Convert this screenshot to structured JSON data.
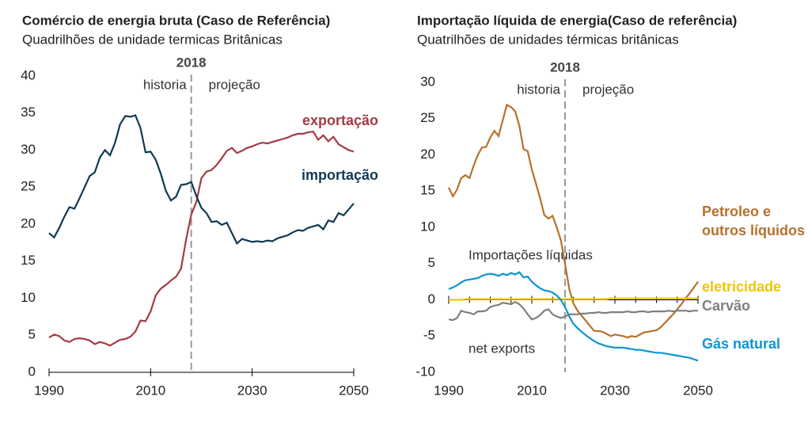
{
  "chart_data": [
    {
      "type": "line",
      "title": "Comércio de energia bruta (Caso de Referência)",
      "subtitle": "Quadrilhões de unidade termicas Britânicas",
      "divider_year": 2018,
      "annotations": [
        "historia",
        "projeção"
      ],
      "x": [
        1990,
        1991,
        1992,
        1993,
        1994,
        1995,
        1996,
        1997,
        1998,
        1999,
        2000,
        2001,
        2002,
        2003,
        2004,
        2005,
        2006,
        2007,
        2008,
        2009,
        2010,
        2011,
        2012,
        2013,
        2014,
        2015,
        2016,
        2017,
        2018,
        2019,
        2020,
        2021,
        2022,
        2023,
        2024,
        2025,
        2026,
        2027,
        2028,
        2029,
        2030,
        2031,
        2032,
        2033,
        2034,
        2035,
        2036,
        2037,
        2038,
        2039,
        2040,
        2041,
        2042,
        2043,
        2044,
        2045,
        2046,
        2047,
        2048,
        2049,
        2050
      ],
      "xlim": [
        1990,
        2050
      ],
      "xticks": [
        1990,
        2010,
        2030,
        2050
      ],
      "ylim": [
        0,
        40
      ],
      "yticks": [
        0,
        5,
        10,
        15,
        20,
        25,
        30,
        35,
        40
      ],
      "series": [
        {
          "name": "exportação",
          "color": "#a33b45",
          "values": [
            4.7,
            5.1,
            4.9,
            4.3,
            4.1,
            4.5,
            4.6,
            4.5,
            4.3,
            3.8,
            4.1,
            3.9,
            3.6,
            4.0,
            4.4,
            4.5,
            4.8,
            5.5,
            7.0,
            6.9,
            8.2,
            10.4,
            11.3,
            11.8,
            12.4,
            12.9,
            14.0,
            18.0,
            21.3,
            23.0,
            26.2,
            27.1,
            27.3,
            28.0,
            28.9,
            29.9,
            30.3,
            29.6,
            29.9,
            30.3,
            30.5,
            30.8,
            31.0,
            30.9,
            31.1,
            31.3,
            31.5,
            31.7,
            32.0,
            32.2,
            32.2,
            32.4,
            32.5,
            31.4,
            32.0,
            31.2,
            31.8,
            30.8,
            30.4,
            30.0,
            29.8
          ]
        },
        {
          "name": "importação",
          "color": "#0f3a52",
          "values": [
            18.8,
            18.2,
            19.5,
            21.0,
            22.3,
            22.1,
            23.5,
            25.0,
            26.5,
            27.0,
            29.0,
            30.0,
            29.3,
            31.0,
            33.5,
            34.6,
            34.5,
            34.7,
            33.0,
            29.7,
            29.8,
            28.7,
            26.8,
            24.5,
            23.2,
            23.7,
            25.3,
            25.4,
            25.7,
            23.8,
            22.2,
            21.5,
            20.3,
            20.4,
            19.9,
            20.2,
            18.8,
            17.4,
            18.0,
            17.8,
            17.6,
            17.7,
            17.6,
            17.8,
            17.7,
            18.1,
            18.3,
            18.5,
            18.9,
            19.2,
            19.1,
            19.5,
            19.7,
            19.9,
            19.3,
            20.5,
            20.3,
            21.5,
            21.2,
            22.0,
            22.8
          ]
        }
      ]
    },
    {
      "type": "line",
      "title": "Importação líquida de energia(Caso de referência)",
      "subtitle": "Quatrilhões de unidades térmicas britânicas",
      "divider_year": 2018,
      "annotations": [
        "historia",
        "projeção",
        "Importações líquidas",
        "net exports"
      ],
      "x": [
        1990,
        1991,
        1992,
        1993,
        1994,
        1995,
        1996,
        1997,
        1998,
        1999,
        2000,
        2001,
        2002,
        2003,
        2004,
        2005,
        2006,
        2007,
        2008,
        2009,
        2010,
        2011,
        2012,
        2013,
        2014,
        2015,
        2016,
        2017,
        2018,
        2019,
        2020,
        2021,
        2022,
        2023,
        2024,
        2025,
        2026,
        2027,
        2028,
        2029,
        2030,
        2031,
        2032,
        2033,
        2034,
        2035,
        2036,
        2037,
        2038,
        2039,
        2040,
        2041,
        2042,
        2043,
        2044,
        2045,
        2046,
        2047,
        2048,
        2049,
        2050
      ],
      "xlim": [
        1990,
        2050
      ],
      "xticks": [
        1990,
        2010,
        2030,
        2050
      ],
      "ylim": [
        -10,
        30
      ],
      "yticks": [
        -10,
        -5,
        0,
        5,
        10,
        15,
        20,
        25,
        30
      ],
      "series": [
        {
          "name": "Petroleo e outros líquidos",
          "color": "#b7712b",
          "values": [
            15.5,
            14.3,
            15.2,
            16.8,
            17.2,
            16.8,
            18.5,
            20.0,
            21.0,
            21.1,
            22.4,
            23.3,
            22.6,
            24.8,
            26.9,
            26.6,
            26.0,
            24.0,
            20.8,
            20.5,
            18.0,
            16.0,
            14.0,
            11.7,
            11.2,
            11.6,
            10.0,
            8.2,
            5.0,
            1.5,
            -0.5,
            -1.5,
            -2.2,
            -2.9,
            -3.6,
            -4.3,
            -4.3,
            -4.4,
            -4.7,
            -5.0,
            -4.8,
            -4.9,
            -5.0,
            -5.2,
            -5.0,
            -5.1,
            -4.8,
            -4.5,
            -4.4,
            -4.3,
            -4.2,
            -3.8,
            -3.2,
            -2.6,
            -2.0,
            -1.3,
            -0.6,
            0.2,
            0.9,
            1.7,
            2.5
          ]
        },
        {
          "name": "eletricidade",
          "color": "#f2c500",
          "values": [
            0.0,
            0.0,
            0.0,
            0.0,
            0.1,
            0.1,
            0.1,
            0.1,
            0.1,
            0.1,
            0.1,
            0.1,
            0.1,
            0.1,
            0.1,
            0.1,
            0.1,
            0.1,
            0.1,
            0.1,
            0.1,
            0.1,
            0.1,
            0.1,
            0.1,
            0.1,
            0.1,
            0.1,
            0.1,
            0.1,
            0.1,
            0.1,
            0.1,
            0.1,
            0.1,
            0.1,
            0.1,
            0.1,
            0.1,
            0.2,
            0.2,
            0.2,
            0.2,
            0.2,
            0.2,
            0.2,
            0.2,
            0.2,
            0.2,
            0.2,
            0.2,
            0.2,
            0.2,
            0.2,
            0.2,
            0.2,
            0.2,
            0.2,
            0.2,
            0.2,
            0.2
          ]
        },
        {
          "name": "Carvão",
          "color": "#7f7f7f",
          "values": [
            -2.7,
            -2.8,
            -2.5,
            -1.5,
            -1.7,
            -1.8,
            -2.0,
            -1.6,
            -1.6,
            -1.5,
            -1.0,
            -0.8,
            -0.7,
            -0.4,
            -0.5,
            -0.6,
            -0.3,
            -0.6,
            -1.2,
            -2.0,
            -2.7,
            -2.5,
            -2.1,
            -1.5,
            -1.3,
            -2.0,
            -2.3,
            -2.5,
            -2.3,
            -2.0,
            -2.0,
            -2.0,
            -1.9,
            -1.9,
            -1.8,
            -1.8,
            -1.7,
            -1.8,
            -1.8,
            -1.7,
            -1.7,
            -1.7,
            -1.7,
            -1.6,
            -1.7,
            -1.7,
            -1.6,
            -1.6,
            -1.7,
            -1.6,
            -1.6,
            -1.6,
            -1.6,
            -1.5,
            -1.6,
            -1.5,
            -1.5,
            -1.5,
            -1.6,
            -1.5,
            -1.5
          ]
        },
        {
          "name": "Gás natural",
          "color": "#0b96d5",
          "values": [
            1.5,
            1.7,
            2.0,
            2.4,
            2.7,
            2.8,
            2.9,
            3.0,
            3.3,
            3.5,
            3.6,
            3.5,
            3.3,
            3.6,
            3.4,
            3.7,
            3.5,
            3.8,
            3.1,
            3.2,
            2.5,
            2.0,
            1.6,
            1.3,
            1.2,
            1.0,
            0.6,
            0.0,
            -1.0,
            -2.3,
            -3.3,
            -3.9,
            -4.4,
            -4.9,
            -5.3,
            -5.7,
            -6.0,
            -6.2,
            -6.4,
            -6.5,
            -6.6,
            -6.6,
            -6.6,
            -6.7,
            -6.8,
            -6.9,
            -6.9,
            -7.0,
            -7.1,
            -7.2,
            -7.3,
            -7.3,
            -7.4,
            -7.5,
            -7.6,
            -7.7,
            -7.8,
            -7.9,
            -8.0,
            -8.2,
            -8.4
          ]
        }
      ]
    }
  ]
}
